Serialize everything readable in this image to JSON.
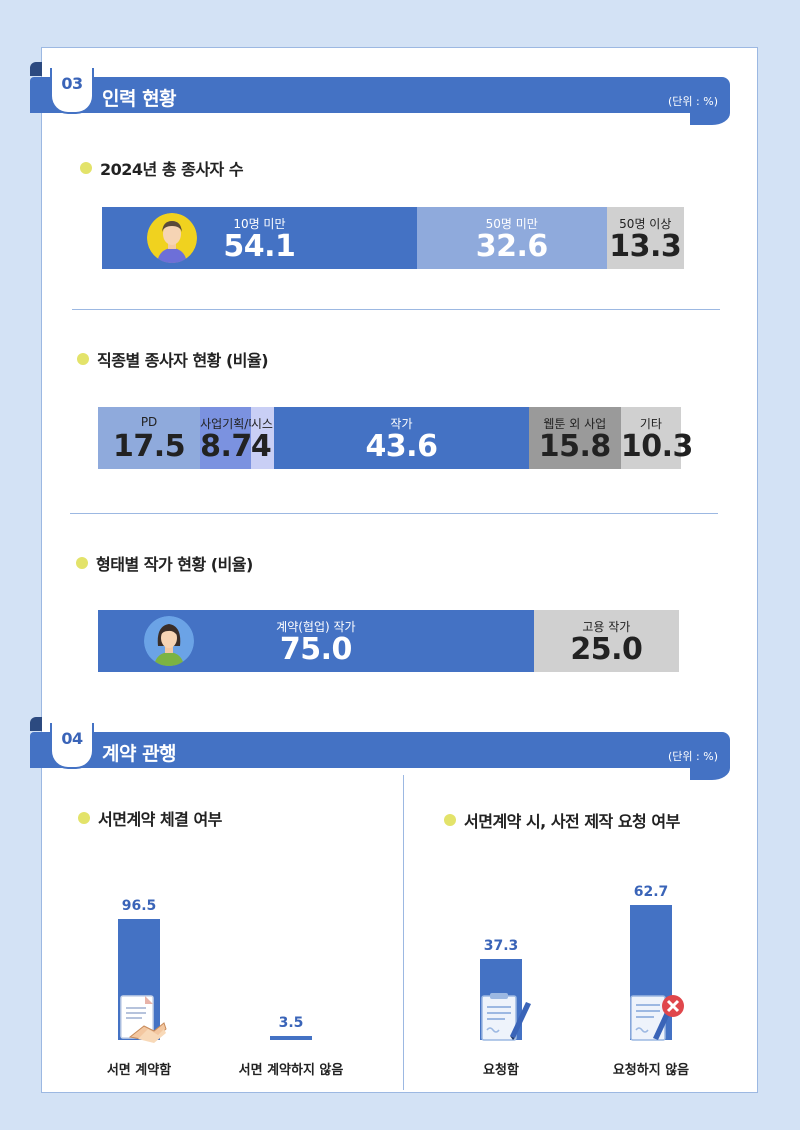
{
  "sections": [
    {
      "number": "03",
      "title": "인력 현황",
      "unit": "(단위 : %)"
    },
    {
      "number": "04",
      "title": "계약 관행",
      "unit": "(단위 : %)"
    }
  ],
  "subheads": {
    "employees_2024": "2024년 총 종사자 수",
    "by_job": "직종별 종사자 현황 (비율)",
    "by_type": "형태별 작가 현황 (비율)",
    "written_contract": "서면계약 체결 여부",
    "pre_request": "서면계약 시, 사전 제작 요청 여부"
  },
  "colors": {
    "primary": "#4472c4",
    "mid": "#8faadc",
    "light": "#c9cff5",
    "gray": "#d0d0d0",
    "darkgray": "#9a9a9a",
    "bullet": "#e3e36a"
  },
  "chart_data": [
    {
      "type": "bar",
      "orientation": "stacked-horizontal",
      "title": "2024년 총 종사자 수",
      "categories": [
        "10명 미만",
        "50명 미만",
        "50명 이상"
      ],
      "values": [
        54.1,
        32.6,
        13.3
      ],
      "display": [
        "54.1",
        "32.6",
        "13.3"
      ],
      "colors": [
        "#4472c4",
        "#8faadc",
        "#d0d0d0"
      ],
      "text_style": [
        "light",
        "light",
        "dark"
      ]
    },
    {
      "type": "bar",
      "orientation": "stacked-horizontal",
      "title": "직종별 종사자 현황 (비율)",
      "categories": [
        "PD",
        "사업기획/마케팅",
        "시스템 관련",
        "작가",
        "웹툰 외 사업",
        "기타"
      ],
      "values": [
        17.5,
        8.7,
        4.0,
        43.6,
        15.8,
        10.3
      ],
      "display": [
        "17.5",
        "8.7",
        "4.0",
        "43.6",
        "15.8",
        "10.3"
      ],
      "colors": [
        "#8faadc",
        "#7b92e0",
        "#c9cff5",
        "#4472c4",
        "#9a9a9a",
        "#d0d0d0"
      ],
      "text_style": [
        "dark",
        "dark",
        "dark",
        "light",
        "dark",
        "dark"
      ]
    },
    {
      "type": "bar",
      "orientation": "stacked-horizontal",
      "title": "형태별 작가 현황 (비율)",
      "categories": [
        "계약(협업) 작가",
        "고용 작가"
      ],
      "values": [
        75.0,
        25.0
      ],
      "display": [
        "75.0",
        "25.0"
      ],
      "colors": [
        "#4472c4",
        "#d0d0d0"
      ],
      "text_style": [
        "light",
        "dark"
      ]
    },
    {
      "type": "bar",
      "title": "서면계약 체결 여부",
      "categories": [
        "서면 계약함",
        "서면 계약하지 않음"
      ],
      "values": [
        96.5,
        3.5
      ],
      "display": [
        "96.5",
        "3.5"
      ],
      "ylim": [
        0,
        100
      ],
      "icons": [
        "contract-handshake-icon",
        ""
      ]
    },
    {
      "type": "bar",
      "title": "서면계약 시, 사전 제작 요청 여부",
      "categories": [
        "요청함",
        "요청하지 않음"
      ],
      "values": [
        37.3,
        62.7
      ],
      "display": [
        "37.3",
        "62.7"
      ],
      "ylim": [
        0,
        100
      ],
      "icons": [
        "document-pen-icon",
        "document-rejected-icon"
      ]
    }
  ]
}
